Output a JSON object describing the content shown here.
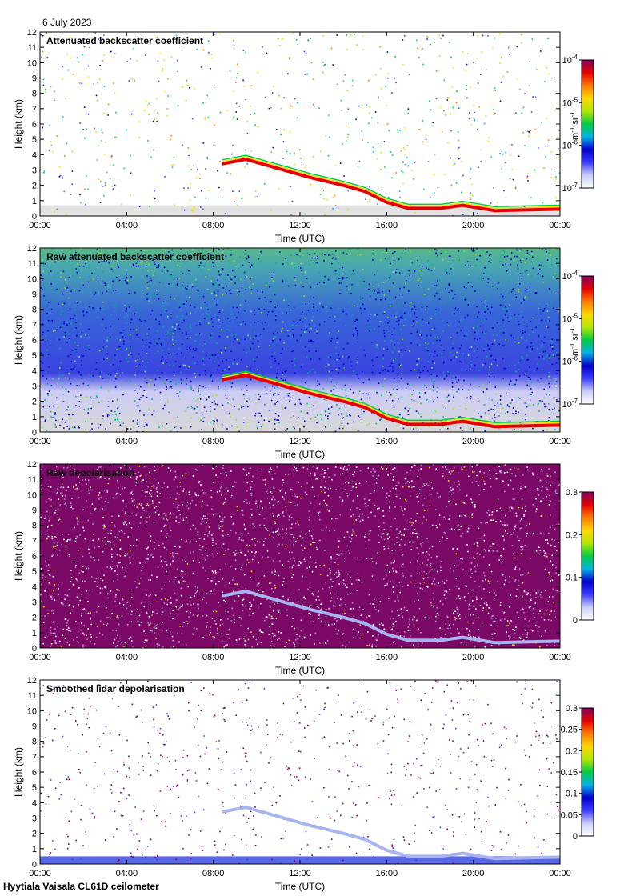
{
  "date": "6 July 2023",
  "footer": "Hyytiala Vaisala CL61D ceilometer",
  "palette": [
    "#f2f2f2",
    "#c8ccff",
    "#3c3cff",
    "#0000cc",
    "#00b3e6",
    "#00cc44",
    "#b3e600",
    "#ffd800",
    "#ff7a00",
    "#e60000",
    "#800060"
  ],
  "chart_data": [
    {
      "type": "heatmap",
      "title": "Attenuated backscatter coefficient",
      "xlabel": "Time (UTC)",
      "ylabel": "Height (km)",
      "x_ticks": [
        "00:00",
        "04:00",
        "08:00",
        "12:00",
        "16:00",
        "20:00",
        "00:00"
      ],
      "y_ticks": [
        "0",
        "1",
        "2",
        "3",
        "4",
        "5",
        "6",
        "7",
        "8",
        "9",
        "10",
        "11",
        "12"
      ],
      "xlim": [
        0,
        24
      ],
      "ylim": [
        0,
        12
      ],
      "colorbar": {
        "scale": "log",
        "range": [
          1e-07,
          0.0001
        ],
        "ticks": [
          {
            "base": "10",
            "exp": "-7"
          },
          {
            "base": "10",
            "exp": "-6"
          },
          {
            "base": "10",
            "exp": "-5"
          },
          {
            "base": "10",
            "exp": "-4"
          }
        ],
        "unit_main": "m",
        "unit_exp1": "-1",
        "unit_mid": " sr",
        "unit_exp2": "-1"
      },
      "noise": "sparse",
      "cloud_base_km": [
        {
          "t": 8.4,
          "h": 3.4
        },
        {
          "t": 9.5,
          "h": 3.7
        },
        {
          "t": 10.5,
          "h": 3.3
        },
        {
          "t": 11.5,
          "h": 2.9
        },
        {
          "t": 12.5,
          "h": 2.5
        },
        {
          "t": 14.0,
          "h": 2.0
        },
        {
          "t": 15.0,
          "h": 1.6
        },
        {
          "t": 16.0,
          "h": 0.9
        },
        {
          "t": 17.0,
          "h": 0.5
        },
        {
          "t": 18.5,
          "h": 0.5
        },
        {
          "t": 19.5,
          "h": 0.7
        },
        {
          "t": 21.0,
          "h": 0.35
        },
        {
          "t": 24.0,
          "h": 0.45
        }
      ]
    },
    {
      "type": "heatmap",
      "title": "Raw attenuated backscatter coefficient",
      "xlabel": "Time (UTC)",
      "ylabel": "Height (km)",
      "x_ticks": [
        "00:00",
        "04:00",
        "08:00",
        "12:00",
        "16:00",
        "20:00",
        "00:00"
      ],
      "y_ticks": [
        "0",
        "1",
        "2",
        "3",
        "4",
        "5",
        "6",
        "7",
        "8",
        "9",
        "10",
        "11",
        "12"
      ],
      "xlim": [
        0,
        24
      ],
      "ylim": [
        0,
        12
      ],
      "colorbar": {
        "scale": "log",
        "range": [
          1e-07,
          0.0001
        ],
        "ticks": [
          {
            "base": "10",
            "exp": "-7"
          },
          {
            "base": "10",
            "exp": "-6"
          },
          {
            "base": "10",
            "exp": "-5"
          },
          {
            "base": "10",
            "exp": "-4"
          }
        ],
        "unit_main": "m",
        "unit_exp1": "-1",
        "unit_mid": " sr",
        "unit_exp2": "-1"
      },
      "noise": "dense-blue"
    },
    {
      "type": "heatmap",
      "title": "Raw depolarisation",
      "xlabel": "Time (UTC)",
      "ylabel": "Height (km)",
      "x_ticks": [
        "00:00",
        "04:00",
        "08:00",
        "12:00",
        "16:00",
        "20:00",
        "00:00"
      ],
      "y_ticks": [
        "0",
        "1",
        "2",
        "3",
        "4",
        "5",
        "6",
        "7",
        "8",
        "9",
        "10",
        "11",
        "12"
      ],
      "xlim": [
        0,
        24
      ],
      "ylim": [
        0,
        12
      ],
      "colorbar": {
        "scale": "linear",
        "range": [
          0,
          0.3
        ],
        "ticks": [
          {
            "base": "0"
          },
          {
            "base": "0.1"
          },
          {
            "base": "0.2"
          },
          {
            "base": "0.3"
          }
        ]
      },
      "noise": "dense-purple"
    },
    {
      "type": "heatmap",
      "title": "Smoothed lidar depolarisation",
      "xlabel": "Time (UTC)",
      "ylabel": "Height (km)",
      "x_ticks": [
        "00:00",
        "04:00",
        "08:00",
        "12:00",
        "16:00",
        "20:00",
        "00:00"
      ],
      "y_ticks": [
        "0",
        "1",
        "2",
        "3",
        "4",
        "5",
        "6",
        "7",
        "8",
        "9",
        "10",
        "11",
        "12"
      ],
      "xlim": [
        0,
        24
      ],
      "ylim": [
        0,
        12
      ],
      "colorbar": {
        "scale": "linear",
        "range": [
          0,
          0.3
        ],
        "ticks": [
          {
            "base": "0"
          },
          {
            "base": "0.05"
          },
          {
            "base": "0.1"
          },
          {
            "base": "0.15"
          },
          {
            "base": "0.2"
          },
          {
            "base": "0.25"
          },
          {
            "base": "0.3"
          }
        ]
      },
      "noise": "sparse-purple"
    }
  ]
}
